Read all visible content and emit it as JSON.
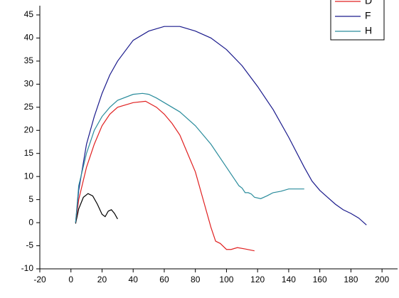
{
  "chart_data": {
    "type": "line",
    "xlim": [
      -20,
      210
    ],
    "xticks": [
      -20,
      0,
      20,
      40,
      60,
      80,
      100,
      120,
      140,
      160,
      180,
      200
    ],
    "ylim": [
      -10,
      47
    ],
    "yticks": [
      -10,
      -5,
      0,
      5,
      10,
      15,
      20,
      25,
      30,
      35,
      40,
      45
    ],
    "series": [
      {
        "color": "#000000",
        "x": [
          3,
          5,
          8,
          11,
          14,
          17,
          20,
          22,
          24,
          26,
          28,
          30
        ],
        "values": [
          -0.2,
          3,
          5.5,
          6.3,
          5.8,
          4,
          1.8,
          1.3,
          2.5,
          2.8,
          2,
          0.8
        ]
      },
      {
        "name": "D",
        "color": "#e02020",
        "x": [
          3,
          5,
          10,
          15,
          20,
          25,
          30,
          40,
          48,
          55,
          60,
          65,
          70,
          75,
          80,
          85,
          90,
          93,
          96,
          100,
          103,
          107,
          112,
          118
        ],
        "values": [
          0,
          5,
          12,
          17,
          21,
          23.5,
          25,
          26,
          26.3,
          25,
          23.5,
          21.5,
          19,
          15,
          11,
          5,
          -1,
          -4,
          -4.5,
          -5.8,
          -5.8,
          -5.4,
          -5.7,
          -6.1
        ]
      },
      {
        "name": "F",
        "color": "#1a1a8c",
        "x": [
          3,
          5,
          10,
          15,
          20,
          25,
          30,
          40,
          50,
          60,
          70,
          80,
          90,
          100,
          110,
          120,
          130,
          140,
          150,
          155,
          160,
          165,
          170,
          175,
          180,
          185,
          190
        ],
        "values": [
          0,
          7,
          17,
          23,
          28,
          32,
          35,
          39.5,
          41.5,
          42.5,
          42.5,
          41.5,
          40,
          37.5,
          34,
          29.5,
          24.5,
          18.5,
          12,
          9,
          7,
          5.5,
          4,
          2.8,
          2,
          1,
          -0.5
        ]
      },
      {
        "name": "H",
        "color": "#2a8c9c",
        "x": [
          3,
          5,
          10,
          15,
          20,
          25,
          30,
          40,
          46,
          50,
          55,
          60,
          70,
          80,
          90,
          100,
          105,
          108,
          110,
          112,
          114,
          116,
          118,
          122,
          126,
          130,
          135,
          140,
          150
        ],
        "values": [
          0,
          8,
          15,
          20,
          23,
          25,
          26.5,
          27.8,
          28,
          27.8,
          27,
          26,
          24,
          21,
          17,
          12,
          9.5,
          8,
          7.5,
          6.5,
          6.5,
          6.2,
          5.5,
          5.2,
          5.8,
          6.5,
          6.8,
          7.3,
          7.3
        ]
      }
    ]
  }
}
